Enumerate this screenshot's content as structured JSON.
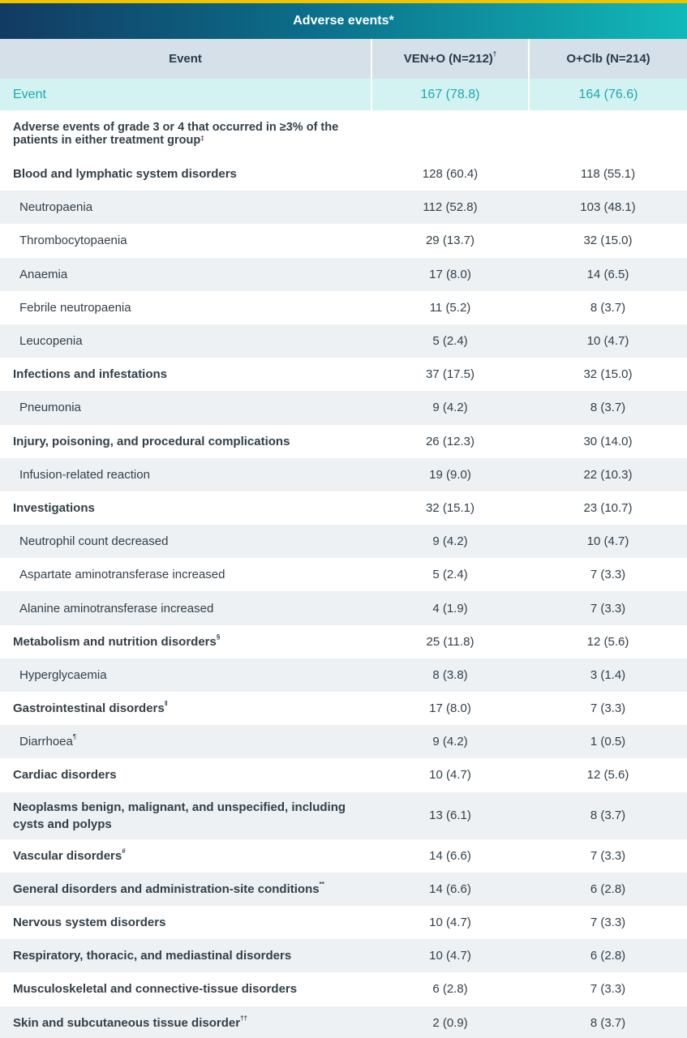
{
  "title": "Adverse events*",
  "columns": {
    "event": "Event",
    "ven_o": "VEN+O (N=212)",
    "ven_o_mark": "†",
    "o_clb": "O+Clb (N=214)"
  },
  "summary_row": {
    "label": "Event",
    "ven_o": "167 (78.8)",
    "o_clb": "164 (76.6)"
  },
  "subheader": {
    "text": "Adverse events of grade 3 or 4 that occurred in ≥3% of the patients in either treatment group",
    "mark": "‡"
  },
  "rows": [
    {
      "label": "Blood and lymphatic system disorders",
      "mark": "",
      "ven_o": "128 (60.4)",
      "o_clb": "118 (55.1)"
    },
    {
      "label": "Neutropaenia",
      "mark": "",
      "ven_o": "112 (52.8)",
      "o_clb": "103 (48.1)"
    },
    {
      "label": "Thrombocytopaenia",
      "mark": "",
      "ven_o": "29 (13.7)",
      "o_clb": "32 (15.0)"
    },
    {
      "label": "Anaemia",
      "mark": "",
      "ven_o": "17 (8.0)",
      "o_clb": "14 (6.5)"
    },
    {
      "label": "Febrile neutropaenia",
      "mark": "",
      "ven_o": "11 (5.2)",
      "o_clb": "8 (3.7)"
    },
    {
      "label": "Leucopenia",
      "mark": "",
      "ven_o": "5 (2.4)",
      "o_clb": "10 (4.7)"
    },
    {
      "label": "Infections and infestations",
      "mark": "",
      "ven_o": "37 (17.5)",
      "o_clb": "32 (15.0)"
    },
    {
      "label": "Pneumonia",
      "mark": "",
      "ven_o": "9 (4.2)",
      "o_clb": "8 (3.7)"
    },
    {
      "label": "Injury, poisoning, and procedural complications",
      "mark": "",
      "ven_o": "26 (12.3)",
      "o_clb": "30 (14.0)"
    },
    {
      "label": "Infusion-related reaction",
      "mark": "",
      "ven_o": "19 (9.0)",
      "o_clb": "22 (10.3)"
    },
    {
      "label": "Investigations",
      "mark": "",
      "ven_o": "32 (15.1)",
      "o_clb": "23 (10.7)"
    },
    {
      "label": "Neutrophil count decreased",
      "mark": "",
      "ven_o": "9 (4.2)",
      "o_clb": "10 (4.7)"
    },
    {
      "label": "Aspartate aminotransferase increased",
      "mark": "",
      "ven_o": "5 (2.4)",
      "o_clb": "7 (3.3)"
    },
    {
      "label": "Alanine aminotransferase increased",
      "mark": "",
      "ven_o": "4 (1.9)",
      "o_clb": "7 (3.3)"
    },
    {
      "label": "Metabolism and nutrition disorders",
      "mark": "§",
      "ven_o": "25 (11.8)",
      "o_clb": "12 (5.6)"
    },
    {
      "label": "Hyperglycaemia",
      "mark": "",
      "ven_o": "8 (3.8)",
      "o_clb": "3 (1.4)"
    },
    {
      "label": "Gastrointestinal disorders",
      "mark": "‖",
      "ven_o": "17 (8.0)",
      "o_clb": "7 (3.3)"
    },
    {
      "label": "Diarrhoea",
      "mark": "¶",
      "ven_o": "9 (4.2)",
      "o_clb": "1 (0.5)"
    },
    {
      "label": "Cardiac disorders",
      "mark": "",
      "ven_o": "10 (4.7)",
      "o_clb": "12 (5.6)"
    },
    {
      "label": "Neoplasms benign, malignant, and unspecified, including cysts and polyps",
      "mark": "",
      "ven_o": "13 (6.1)",
      "o_clb": "8 (3.7)"
    },
    {
      "label": "Vascular disorders",
      "mark": "#",
      "ven_o": "14 (6.6)",
      "o_clb": "7 (3.3)"
    },
    {
      "label": "General disorders and administration-site conditions",
      "mark": "**",
      "ven_o": "14 (6.6)",
      "o_clb": "6 (2.8)"
    },
    {
      "label": "Nervous system disorders",
      "mark": "",
      "ven_o": "10 (4.7)",
      "o_clb": "7 (3.3)"
    },
    {
      "label": "Respiratory, thoracic, and mediastinal disorders",
      "mark": "",
      "ven_o": "10 (4.7)",
      "o_clb": "6 (2.8)"
    },
    {
      "label": "Musculoskeletal and connective-tissue disorders",
      "mark": "",
      "ven_o": "6 (2.8)",
      "o_clb": "7 (3.3)"
    },
    {
      "label": "Skin and subcutaneous tissue disorder",
      "mark": "††",
      "ven_o": "2 (0.9)",
      "o_clb": "8 (3.7)"
    }
  ],
  "colors": {
    "accent_stripe": "#f1c400",
    "header_dark": "#123a62",
    "header_teal": "#12b9ba",
    "highlight_text": "#1ea9ae",
    "highlight_bg": "#d3f2f2",
    "alt_row": "#edf1f4"
  }
}
